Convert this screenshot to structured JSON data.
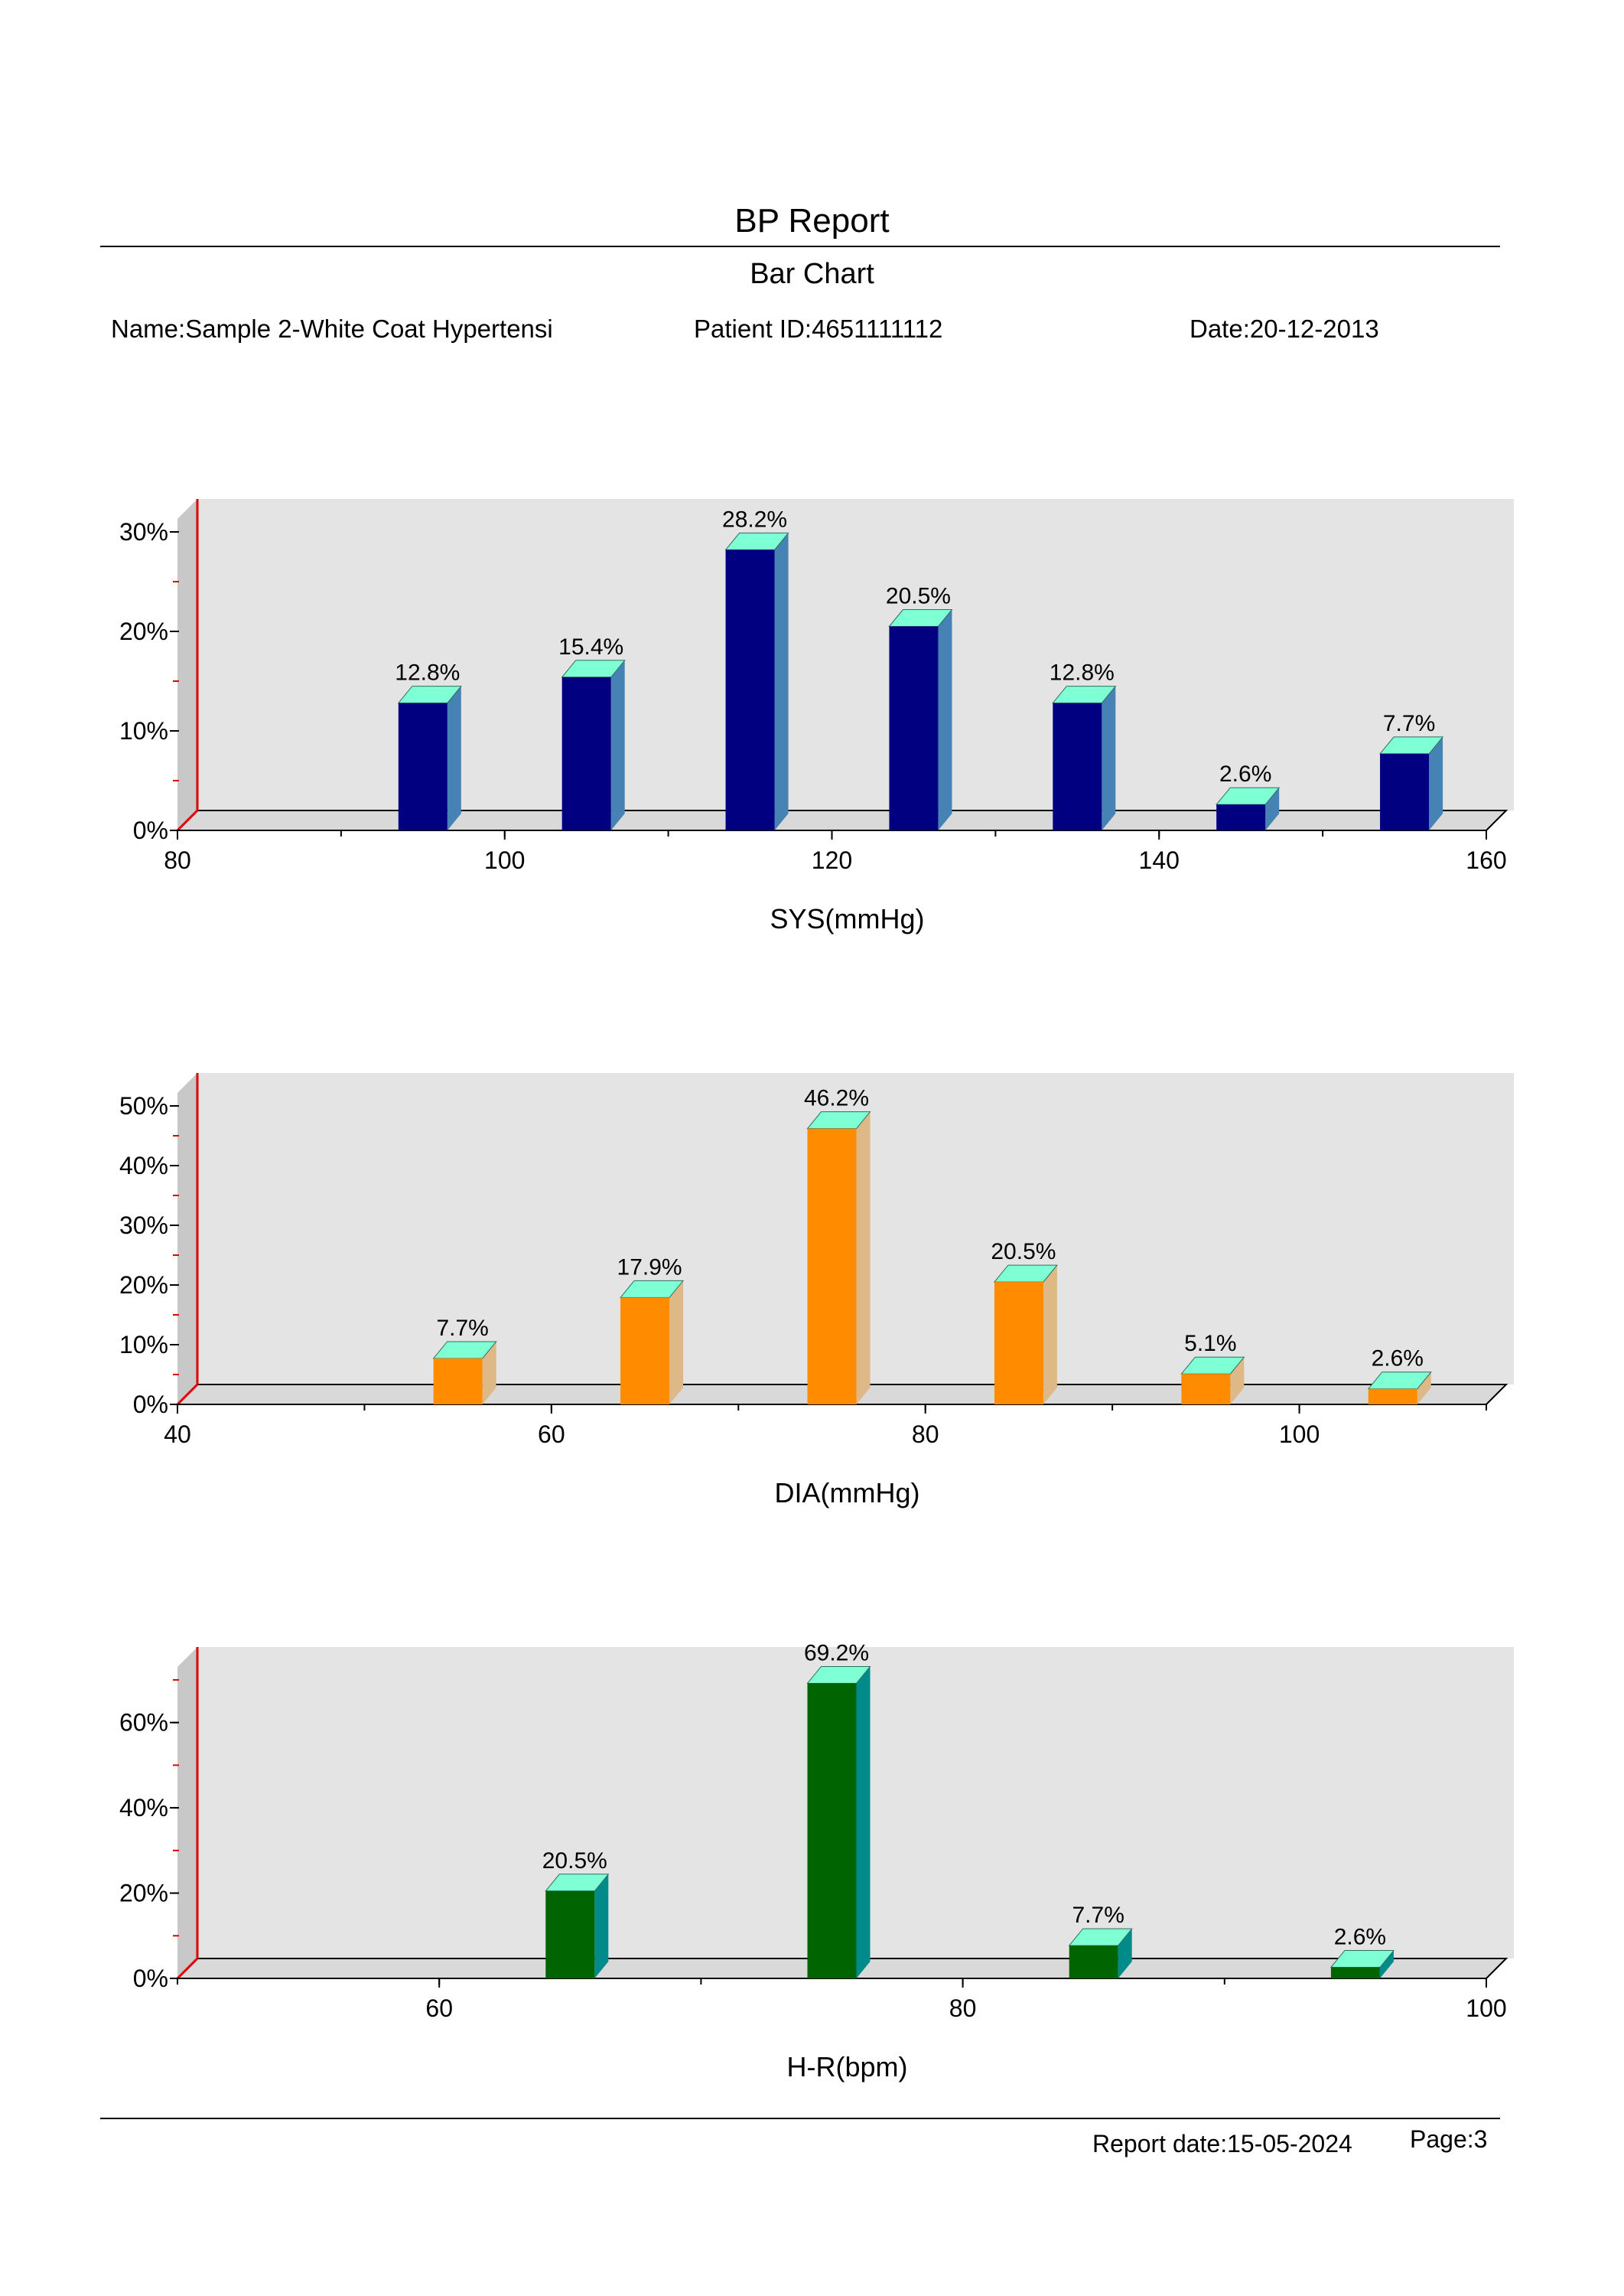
{
  "header": {
    "title": "BP Report",
    "subtitle": "Bar Chart",
    "name": "Name:Sample 2-White Coat Hypertensi",
    "patient_id": "Patient ID:4651111112",
    "date": "Date:20-12-2013"
  },
  "footer": {
    "report_date": "Report date:15-05-2024",
    "page": "Page:3"
  },
  "colors": {
    "plot_background": "#e4e4e4",
    "floor": "#d9d9d9",
    "left_axis": "#e00000",
    "bar_top": "#7fffd4"
  },
  "chart_data": [
    {
      "type": "bar",
      "xlabel": "SYS(mmHg)",
      "ylabel": "",
      "xlim": [
        80,
        160
      ],
      "ylim": [
        0,
        30
      ],
      "x_ticks": [
        80,
        100,
        120,
        140,
        160
      ],
      "y_ticks": [
        0,
        10,
        20,
        30
      ],
      "y_tick_labels": [
        "0%",
        "10%",
        "20%",
        "30%"
      ],
      "grid": false,
      "bar_color": "#000080",
      "bar_side_color": "#4682b4",
      "x": [
        95,
        105,
        115,
        125,
        135,
        145,
        155
      ],
      "values": [
        12.8,
        15.4,
        28.2,
        20.5,
        12.8,
        2.6,
        7.7
      ],
      "labels": [
        "12.8%",
        "15.4%",
        "28.2%",
        "20.5%",
        "12.8%",
        "2.6%",
        "7.7%"
      ]
    },
    {
      "type": "bar",
      "xlabel": "DIA(mmHg)",
      "ylabel": "",
      "xlim": [
        40,
        110
      ],
      "ylim": [
        0,
        50
      ],
      "x_ticks": [
        40,
        60,
        80,
        100
      ],
      "y_ticks": [
        0,
        10,
        20,
        30,
        40,
        50
      ],
      "y_tick_labels": [
        "0%",
        "10%",
        "20%",
        "30%",
        "40%",
        "50%"
      ],
      "grid": false,
      "bar_color": "#ff8c00",
      "bar_side_color": "#deb887",
      "x": [
        55,
        65,
        75,
        85,
        95,
        105
      ],
      "values": [
        7.7,
        17.9,
        46.2,
        20.5,
        5.1,
        2.6
      ],
      "labels": [
        "7.7%",
        "17.9%",
        "46.2%",
        "20.5%",
        "5.1%",
        "2.6%"
      ]
    },
    {
      "type": "bar",
      "xlabel": "H-R(bpm)",
      "ylabel": "",
      "xlim": [
        50,
        100
      ],
      "ylim": [
        0,
        70
      ],
      "x_ticks": [
        60,
        80,
        100
      ],
      "y_ticks": [
        0,
        20,
        40,
        60
      ],
      "y_tick_labels": [
        "0%",
        "20%",
        "40%",
        "60%"
      ],
      "grid": false,
      "bar_color": "#006400",
      "bar_side_color": "#008b8b",
      "x": [
        65,
        75,
        85,
        95
      ],
      "values": [
        20.5,
        69.2,
        7.7,
        2.6
      ],
      "labels": [
        "20.5%",
        "69.2%",
        "7.7%",
        "2.6%"
      ]
    }
  ]
}
